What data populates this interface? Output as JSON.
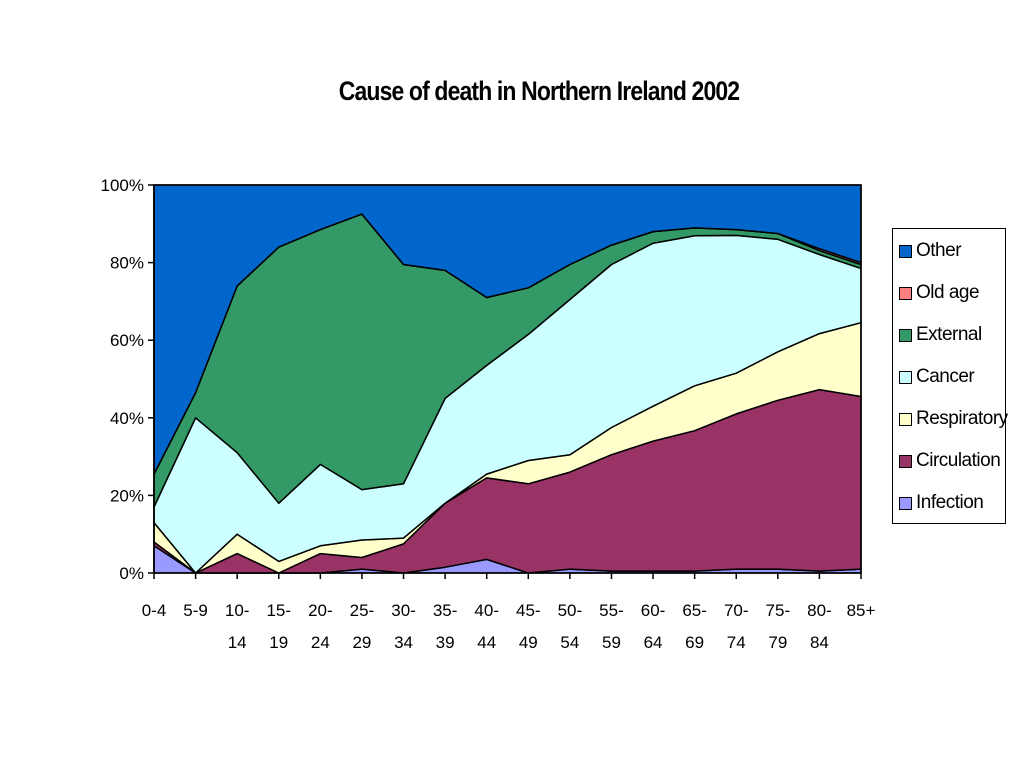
{
  "chart_data": {
    "type": "area",
    "stacked": true,
    "percent_stacked": true,
    "title": "Cause of death in Northern Ireland 2002",
    "xlabel": "",
    "ylabel": "",
    "ylim": [
      0,
      100
    ],
    "y_ticks": [
      "0%",
      "20%",
      "40%",
      "60%",
      "80%",
      "100%"
    ],
    "grid": false,
    "legend_position": "right",
    "categories": [
      "0-4",
      "5-9",
      "10-14",
      "15-19",
      "20-24",
      "25-29",
      "30-34",
      "35-39",
      "40-44",
      "45-49",
      "50-54",
      "55-59",
      "60-64",
      "65-69",
      "70-74",
      "75-79",
      "80-84",
      "85+"
    ],
    "category_lines": [
      [
        "0-4"
      ],
      [
        "5-9"
      ],
      [
        "10-",
        "14"
      ],
      [
        "15-",
        "19"
      ],
      [
        "20-",
        "24"
      ],
      [
        "25-",
        "29"
      ],
      [
        "30-",
        "34"
      ],
      [
        "35-",
        "39"
      ],
      [
        "40-",
        "44"
      ],
      [
        "45-",
        "49"
      ],
      [
        "50-",
        "54"
      ],
      [
        "55-",
        "59"
      ],
      [
        "60-",
        "64"
      ],
      [
        "65-",
        "69"
      ],
      [
        "70-",
        "74"
      ],
      [
        "75-",
        "79"
      ],
      [
        "80-",
        "84"
      ],
      [
        "85+"
      ]
    ],
    "series": [
      {
        "name": "Infection",
        "color": "#9999ff",
        "values": [
          7,
          0,
          0,
          0,
          0,
          1,
          0,
          1.5,
          3.5,
          0,
          1,
          0.5,
          0.5,
          0.5,
          1,
          1,
          0.5,
          1
        ]
      },
      {
        "name": "Circulation",
        "color": "#993366",
        "values": [
          1,
          0,
          5,
          0,
          5,
          3,
          7.5,
          16.5,
          21,
          23,
          25,
          30,
          33.5,
          36,
          40,
          43.5,
          47,
          44.5
        ]
      },
      {
        "name": "Respiratory",
        "color": "#ffffcc",
        "values": [
          5,
          0,
          5,
          3,
          2,
          4.5,
          1.5,
          0,
          1,
          6,
          4.5,
          7,
          9,
          11.5,
          10.5,
          12.5,
          14.5,
          19
        ]
      },
      {
        "name": "Cancer",
        "color": "#ccffff",
        "values": [
          4,
          40,
          21,
          15,
          21,
          13,
          14,
          27,
          28,
          32.5,
          40,
          42,
          42,
          38.5,
          35.5,
          29,
          20.5,
          14
        ]
      },
      {
        "name": "External",
        "color": "#339966",
        "values": [
          8.5,
          6.5,
          43,
          66,
          60.5,
          71,
          56.5,
          33,
          17.5,
          12,
          9,
          5,
          3,
          2,
          1.5,
          1.5,
          1,
          1
        ]
      },
      {
        "name": "Old age",
        "color": "#ff8080",
        "values": [
          0,
          0,
          0,
          0,
          0,
          0,
          0,
          0,
          0,
          0,
          0,
          0,
          0,
          0,
          0,
          0,
          0.5,
          0.5
        ]
      },
      {
        "name": "Other",
        "color": "#0066cc",
        "values": [
          74.5,
          53.5,
          26,
          16,
          11.5,
          7.5,
          20.5,
          22,
          29,
          26.5,
          20.5,
          15.5,
          12,
          11,
          11.5,
          12.5,
          16.5,
          20
        ]
      }
    ]
  }
}
